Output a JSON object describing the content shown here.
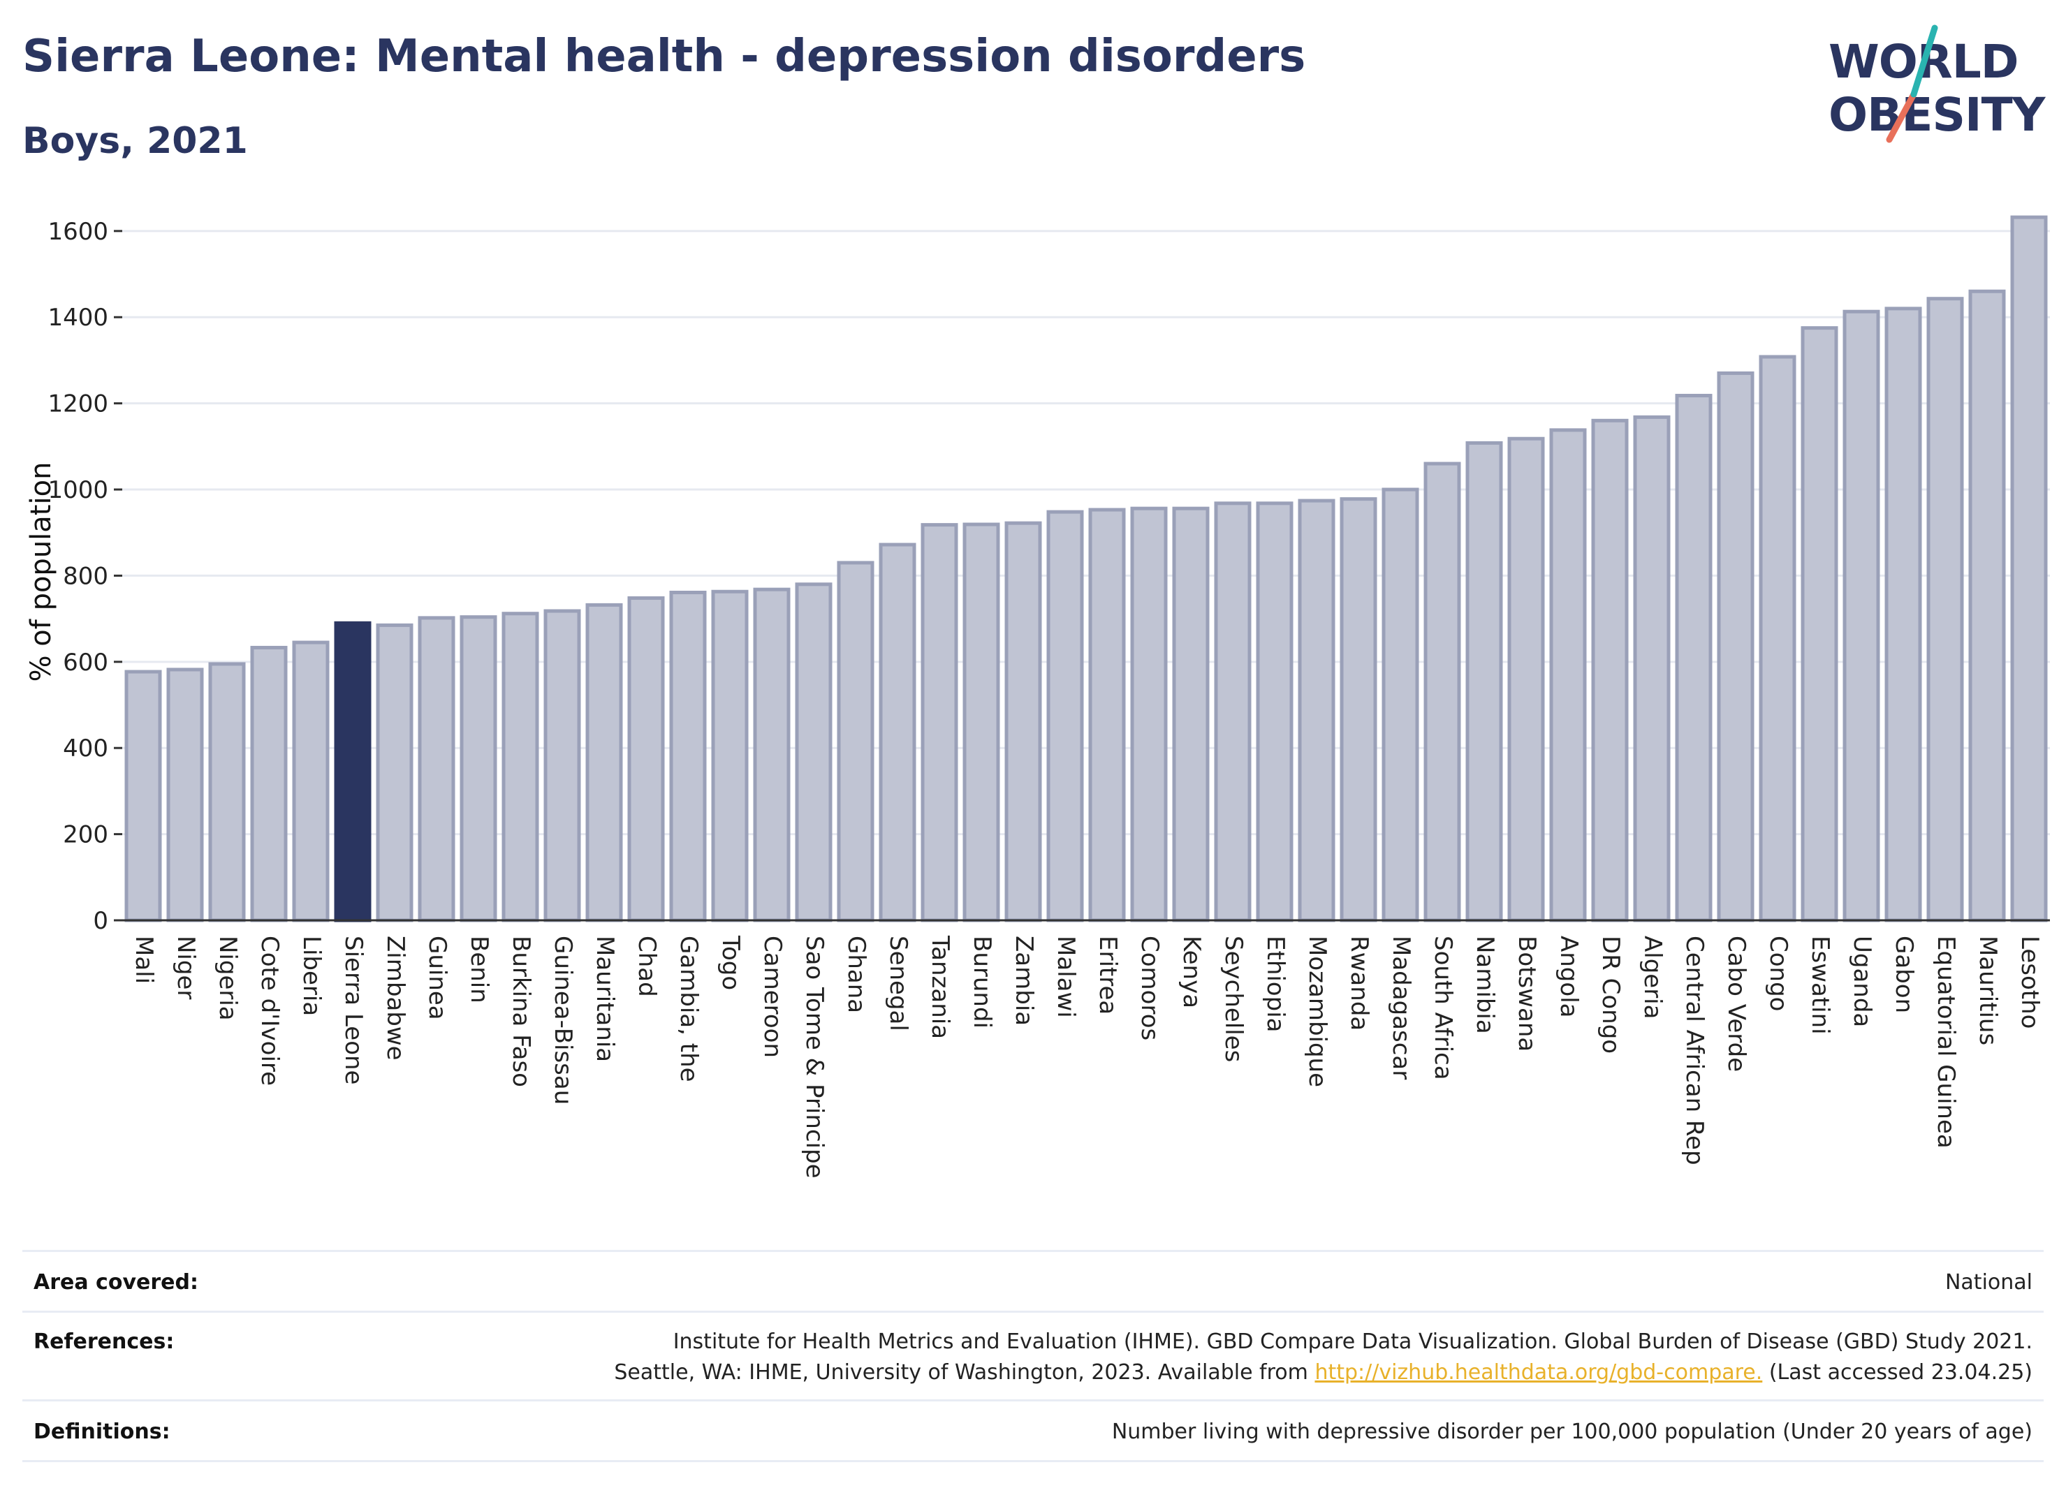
{
  "header": {
    "title": "Sierra Leone: Mental health - depression disorders",
    "subtitle": "Boys, 2021"
  },
  "logo": {
    "line1": "WORLD",
    "line2": "OBESITY",
    "accent_colors": [
      "#2ab3b0",
      "#e8705a"
    ]
  },
  "colors": {
    "bar": "#c0c4d3",
    "bar_border": "#9aa0b8",
    "highlight": "#2a3560",
    "text": "#2a3560",
    "grid": "#e6e9f0"
  },
  "chart_data": {
    "type": "bar",
    "ylabel": "% of population",
    "ylim": [
      0,
      1650
    ],
    "yticks": [
      0,
      200,
      400,
      600,
      800,
      1000,
      1200,
      1400,
      1600
    ],
    "grid": true,
    "highlight": "Sierra Leone",
    "categories": [
      "Mali",
      "Niger",
      "Nigeria",
      "Cote d'Ivoire",
      "Liberia",
      "Sierra Leone",
      "Zimbabwe",
      "Guinea",
      "Benin",
      "Burkina Faso",
      "Guinea-Bissau",
      "Mauritania",
      "Chad",
      "Gambia, the",
      "Togo",
      "Cameroon",
      "Sao Tome & Principe",
      "Ghana",
      "Senegal",
      "Tanzania",
      "Burundi",
      "Zambia",
      "Malawi",
      "Eritrea",
      "Comoros",
      "Kenya",
      "Seychelles",
      "Ethiopia",
      "Mozambique",
      "Rwanda",
      "Madagascar",
      "South Africa",
      "Namibia",
      "Botswana",
      "Angola",
      "DR Congo",
      "Algeria",
      "Central African Rep",
      "Cabo Verde",
      "Congo",
      "Eswatini",
      "Uganda",
      "Gabon",
      "Equatorial Guinea",
      "Mauritius",
      "Lesotho"
    ],
    "values": [
      577,
      582,
      595,
      633,
      645,
      690,
      685,
      702,
      704,
      712,
      718,
      732,
      748,
      761,
      763,
      768,
      780,
      830,
      872,
      918,
      919,
      922,
      948,
      953,
      956,
      956,
      968,
      968,
      974,
      978,
      1000,
      1060,
      1108,
      1118,
      1138,
      1160,
      1168,
      1218,
      1270,
      1308,
      1375,
      1413,
      1420,
      1443,
      1460,
      1632
    ]
  },
  "footer": {
    "area_label": "Area covered:",
    "area_value": "National",
    "references_label": "References:",
    "references_line1": "Institute for Health Metrics and Evaluation (IHME). GBD Compare Data Visualization. Global Burden of Disease (GBD) Study 2021.",
    "references_line2_pre": "Seattle, WA: IHME, University of Washington, 2023. Available from",
    "references_link": "http://vizhub.healthdata.org/gbd-compare.",
    "references_line2_post": "(Last accessed 23.04.25)",
    "definitions_label": "Definitions:",
    "definitions_value": "Number living with depressive disorder per 100,000 population (Under 20 years of age)"
  }
}
